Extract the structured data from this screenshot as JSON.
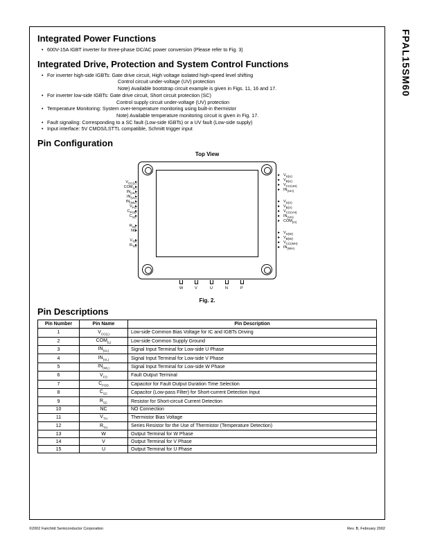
{
  "part_number": "FPAL15SM60",
  "section1": {
    "title": "Integrated Power Functions",
    "bullet": "600V-15A IGBT inverter for three-phase DC/AC power conversion (Please refer to Fig. 3)"
  },
  "section2": {
    "title": "Integrated Drive, Protection and System Control Functions",
    "b1": "For inverter high-side IGBTs: Gate drive circuit, High voltage isolated high-speed level shifting",
    "b1a": "Control circuit under-voltage (UV) protection",
    "b1b": "Note) Available bootstrap circuit example is given in Figs. 11, 16 and 17.",
    "b2": "For inverter low-side IGBTs: Gate drive circuit, Short circuit protection (SC)",
    "b2a": "Control supply circuit under-voltage (UV) protection",
    "b3": "Temperature Monitoring: System over-temperature monitoring using built-in thermistor",
    "b3a": "Note) Available temperature monitoring circuit is given in Fig. 17.",
    "b4": "Fault signaling: Corresponding to a SC fault (Low-side IGBTs) or a UV fault (Low-side supply)",
    "b5": "Input interface: 5V CMOS/LSTTL compatible, Schmitt trigger input"
  },
  "pincfg_title": "Pin Configuration",
  "topview": "Top View",
  "figcap": "Fig. 2.",
  "left_pins": [
    "V_CC(L)",
    "COM_(L)",
    "IN_(UL)",
    "IN_(VL)",
    "IN_(WL)",
    "V_FO",
    "C_FOD",
    "C_SC",
    "",
    "R_SC",
    "NC",
    "",
    "V_TH",
    "R_TH"
  ],
  "right_groups": [
    [
      "V_S(U)",
      "V_B(U)",
      "V_CC(UH)",
      "IN_(UH)"
    ],
    [
      "V_S(V)",
      "V_B(V)",
      "V_CC(VH)",
      "IN_(VH)",
      "COM_(H)"
    ],
    [
      "V_S(W)",
      "V_B(W)",
      "V_CC(WH)",
      "IN_(WH)"
    ]
  ],
  "bottom_pins": [
    "W",
    "V",
    "U",
    "N",
    "P"
  ],
  "pindesc_title": "Pin Descriptions",
  "headers": [
    "Pin Number",
    "Pin Name",
    "Pin Description"
  ],
  "rows": [
    [
      "1",
      "V_CC(L)",
      "Low-side Common Bias Voltage for IC and IGBTs Driving"
    ],
    [
      "2",
      "COM_(L)",
      "Low-side Common Supply Ground"
    ],
    [
      "3",
      "IN_(UL)",
      "Signal Input Terminal for Low-side U Phase"
    ],
    [
      "4",
      "IN_(VL)",
      "Signal Input Terminal for Low-side V Phase"
    ],
    [
      "5",
      "IN_(WL)",
      "Signal Input Terminal for Low-side W Phase"
    ],
    [
      "6",
      "V_FO",
      "Fault Output Terminal"
    ],
    [
      "7",
      "C_FOD",
      "Capacitor for Fault Output Duration Time Selection"
    ],
    [
      "8",
      "C_SC",
      "Capacitor (Low-pass Filter) for Short-current Detection Input"
    ],
    [
      "9",
      "R_SC",
      "Resistor for Short-circuit Current Detection"
    ],
    [
      "10",
      "NC",
      "NO Connection"
    ],
    [
      "11",
      "V_TH",
      "Thermistor Bias Voltage"
    ],
    [
      "12",
      "R_TH",
      "Series Resistor for the Use of Thermistor (Temperature Detection)"
    ],
    [
      "13",
      "W",
      "Output Terminal for W Phase"
    ],
    [
      "14",
      "V",
      "Output Terminal for V Phase"
    ],
    [
      "15",
      "U",
      "Output Terminal for U Phase"
    ]
  ],
  "footer_l": "©2002 Fairchild Semiconductor Corporation",
  "footer_r": "Rev. B, February 2002"
}
